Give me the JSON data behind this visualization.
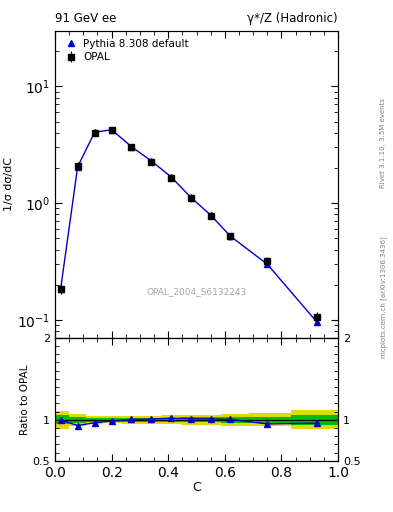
{
  "title_left": "91 GeV ee",
  "title_right": "γ*/Z (Hadronic)",
  "ylabel_main": "1/σ dσ/dC",
  "ylabel_ratio": "Ratio to OPAL",
  "xlabel": "C",
  "right_label": "Rivet 3.1.10, 3.5M events",
  "right_label2": "mcplots.cern.ch [arXiv:1306.3436]",
  "watermark": "OPAL_2004_S6132243",
  "legend_entries": [
    "OPAL",
    "Pythia 8.308 default"
  ],
  "opal_x": [
    0.02,
    0.08,
    0.14,
    0.2,
    0.27,
    0.34,
    0.41,
    0.48,
    0.55,
    0.62,
    0.75,
    0.925
  ],
  "opal_y": [
    0.185,
    2.1,
    4.0,
    4.2,
    3.0,
    2.25,
    1.65,
    1.1,
    0.78,
    0.52,
    0.32,
    0.105
  ],
  "opal_yerr": [
    0.02,
    0.15,
    0.18,
    0.18,
    0.14,
    0.11,
    0.09,
    0.07,
    0.05,
    0.04,
    0.025,
    0.012
  ],
  "pythia_x": [
    0.02,
    0.08,
    0.14,
    0.2,
    0.27,
    0.34,
    0.41,
    0.48,
    0.55,
    0.62,
    0.75,
    0.925
  ],
  "pythia_y": [
    0.185,
    2.05,
    4.05,
    4.25,
    3.05,
    2.3,
    1.68,
    1.12,
    0.79,
    0.52,
    0.3,
    0.096
  ],
  "ratio_x": [
    0.02,
    0.08,
    0.14,
    0.2,
    0.27,
    0.34,
    0.41,
    0.48,
    0.55,
    0.62,
    0.75,
    0.925
  ],
  "ratio_y": [
    1.0,
    0.93,
    0.965,
    0.985,
    1.005,
    1.01,
    1.02,
    1.015,
    1.01,
    1.005,
    0.95,
    0.96
  ],
  "bin_edges": [
    0.0,
    0.05,
    0.11,
    0.17,
    0.235,
    0.305,
    0.375,
    0.445,
    0.515,
    0.585,
    0.685,
    0.835,
    1.0
  ],
  "opal_color": "#000000",
  "pythia_color": "#0000cc",
  "band_green": "#00bb00",
  "band_yellow": "#dddd00",
  "ylim_main": [
    0.07,
    30
  ],
  "ylim_ratio": [
    0.5,
    2.0
  ],
  "xlim": [
    0.0,
    1.0
  ],
  "main_yticks": [
    0.1,
    1,
    10
  ],
  "ratio_yticks": [
    0.5,
    1.0,
    2.0
  ],
  "ratio_yticklabels": [
    "0.5",
    "1",
    "2"
  ]
}
